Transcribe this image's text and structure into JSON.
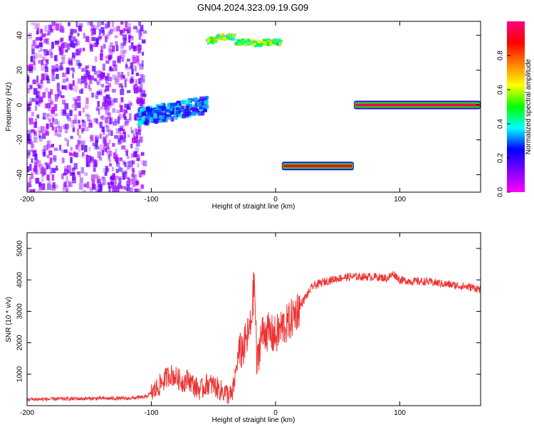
{
  "title": "GN04.2024.323.09.19.G09",
  "chart_data": [
    {
      "type": "heatmap",
      "xlabel": "Height of straight line (km)",
      "ylabel": "Frequency (Hz)",
      "xlim": [
        -200,
        165
      ],
      "ylim": [
        -50,
        48
      ],
      "x_ticks": [
        -200,
        -100,
        0,
        100
      ],
      "y_ticks": [
        40,
        20,
        0,
        -20,
        -40
      ],
      "colorbar": {
        "label": "Normalized spectral amplitude",
        "range": [
          0,
          1
        ],
        "ticks": [
          0.0,
          0.2,
          0.4,
          0.6,
          0.8
        ],
        "colormap": [
          "#ff00ff",
          "#8000ff",
          "#0000ff",
          "#00ffff",
          "#00ff00",
          "#ffff00",
          "#ff8000",
          "#ff0000",
          "#ff0080"
        ]
      },
      "features": [
        {
          "name": "diffuse noise",
          "x_range": [
            -200,
            -105
          ],
          "freq_range": [
            -50,
            48
          ],
          "amplitude": 0.12
        },
        {
          "name": "rising trace",
          "x_range": [
            -110,
            -55
          ],
          "freq_start": -7,
          "freq_end": 0,
          "amplitude": 0.3
        },
        {
          "name": "upper trace",
          "x_range": [
            -55,
            5
          ],
          "freq_values": [
            37,
            39,
            39,
            36,
            36,
            35,
            36,
            36
          ],
          "amplitude": 0.55
        },
        {
          "name": "lower line",
          "x_range": [
            5,
            63
          ],
          "freq": -35,
          "amplitude": 0.9
        },
        {
          "name": "zero line",
          "x_range": [
            63,
            165
          ],
          "freq": 0,
          "amplitude": 0.95
        }
      ]
    },
    {
      "type": "line",
      "xlabel": "Height of straight line (km)",
      "ylabel": "SNR (10 * v/v)",
      "xlim": [
        -200,
        165
      ],
      "ylim": [
        0,
        5500
      ],
      "x_ticks": [
        -200,
        -100,
        0,
        100
      ],
      "y_ticks": [
        1000,
        2000,
        3000,
        4000,
        5000
      ],
      "series": [
        {
          "color": "#ee3333",
          "x": [
            -200,
            -180,
            -160,
            -140,
            -120,
            -105,
            -98,
            -90,
            -85,
            -80,
            -75,
            -70,
            -65,
            -60,
            -55,
            -50,
            -45,
            -40,
            -35,
            -30,
            -25,
            -20,
            -17,
            -15,
            -12,
            -8,
            -5,
            0,
            5,
            10,
            15,
            20,
            25,
            30,
            40,
            50,
            60,
            70,
            80,
            90,
            95,
            100,
            110,
            120,
            130,
            140,
            150,
            160,
            165
          ],
          "y": [
            200,
            210,
            220,
            230,
            230,
            270,
            450,
            800,
            1000,
            900,
            750,
            850,
            600,
            500,
            700,
            650,
            500,
            400,
            300,
            1600,
            1900,
            2500,
            4000,
            1200,
            2200,
            2400,
            2300,
            2200,
            2500,
            2600,
            2900,
            3200,
            3500,
            3800,
            3950,
            4050,
            4100,
            4100,
            4100,
            4050,
            4200,
            4000,
            3950,
            3950,
            3900,
            3850,
            3800,
            3750,
            3700
          ]
        }
      ]
    }
  ]
}
